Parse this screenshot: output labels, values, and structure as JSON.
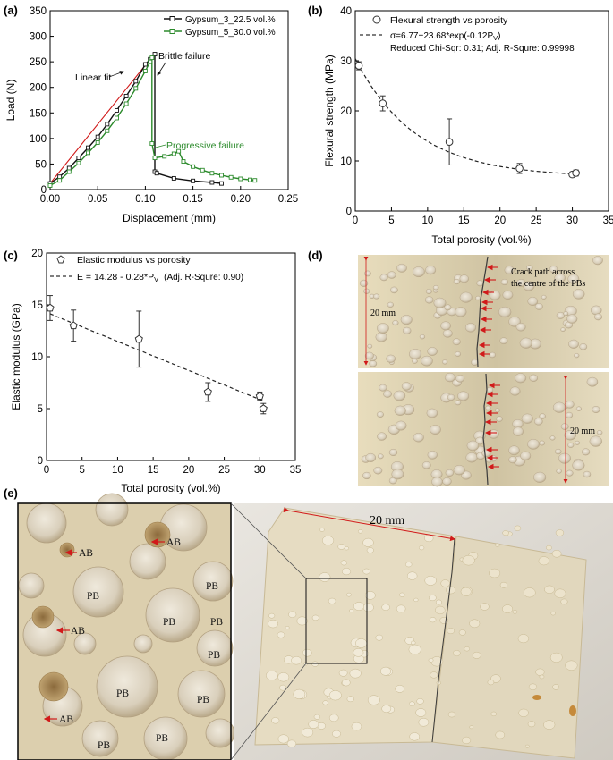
{
  "panels": {
    "a": {
      "label": "(a)",
      "chart": {
        "type": "line",
        "xlabel": "Displacement (mm)",
        "ylabel": "Load (N)",
        "xlim": [
          0.0,
          0.25
        ],
        "ylim": [
          0,
          350
        ],
        "xticks": [
          "0.00",
          "0.05",
          "0.10",
          "0.15",
          "0.20",
          "0.25"
        ],
        "yticks": [
          "0",
          "50",
          "100",
          "150",
          "200",
          "250",
          "300",
          "350"
        ],
        "series": [
          {
            "name": "Gypsum_3_22.5 vol.%",
            "color": "#111111",
            "x": [
              0.0,
              0.01,
              0.02,
              0.03,
              0.04,
              0.05,
              0.06,
              0.07,
              0.08,
              0.09,
              0.1,
              0.105,
              0.11,
              0.11,
              0.112,
              0.13,
              0.15,
              0.17,
              0.18
            ],
            "y": [
              12,
              25,
              42,
              62,
              82,
              103,
              128,
              155,
              183,
              212,
              245,
              255,
              265,
              35,
              32,
              22,
              17,
              14,
              12
            ]
          },
          {
            "name": "Gypsum_5_30.0 vol.%",
            "color": "#2b8a2b",
            "x": [
              0.0,
              0.01,
              0.02,
              0.03,
              0.04,
              0.05,
              0.06,
              0.07,
              0.08,
              0.09,
              0.1,
              0.105,
              0.107,
              0.107,
              0.11,
              0.12,
              0.13,
              0.135,
              0.14,
              0.15,
              0.16,
              0.17,
              0.18,
              0.19,
              0.2,
              0.21,
              0.215
            ],
            "y": [
              8,
              18,
              35,
              52,
              72,
              92,
              115,
              140,
              168,
              198,
              232,
              250,
              258,
              90,
              62,
              65,
              70,
              75,
              55,
              45,
              38,
              32,
              28,
              24,
              21,
              19,
              18
            ]
          }
        ],
        "annotations": {
          "linear_fit": "Linear fit",
          "brittle_failure": "Brittle failure",
          "progressive_failure": "Progressive failure"
        },
        "grid": false,
        "legend": "top-right"
      }
    },
    "b": {
      "label": "(b)",
      "chart": {
        "type": "scatter",
        "xlabel": "Total porosity (vol.%)",
        "ylabel": "Flexural strength (MPa)",
        "xlim": [
          0,
          35
        ],
        "ylim": [
          0,
          40
        ],
        "xticks": [
          "0",
          "5",
          "10",
          "15",
          "20",
          "25",
          "30",
          "35"
        ],
        "yticks": [
          "0",
          "10",
          "20",
          "30",
          "40"
        ],
        "series": [
          {
            "name": "Flexural strength vs porosity",
            "x": [
              0.5,
              3.8,
              13.0,
              22.7,
              30.0,
              30.5
            ],
            "y": [
              29.0,
              21.5,
              13.8,
              8.5,
              7.3,
              7.6
            ],
            "err": [
              0.8,
              1.5,
              4.6,
              1.0,
              0.5,
              0.6
            ]
          }
        ],
        "fit": {
          "a": 6.77,
          "b": 23.68,
          "c": 0.12,
          "equation_main": "σ=6.77+23.68*exp(-0.12P",
          "equation_sub": "V",
          "equation_tail": ")",
          "stats": "Reduced Chi-Sqr: 0.31; Adj. R-Squre: 0.99998"
        },
        "grid": false,
        "legend": "top-right"
      }
    },
    "c": {
      "label": "(c)",
      "chart": {
        "type": "scatter",
        "xlabel": "Total porosity (vol.%)",
        "ylabel": "Elastic modulus (GPa)",
        "xlim": [
          0,
          35
        ],
        "ylim": [
          0,
          20
        ],
        "xticks": [
          "0",
          "5",
          "10",
          "15",
          "20",
          "25",
          "30",
          "35"
        ],
        "yticks": [
          "0",
          "5",
          "10",
          "15",
          "20"
        ],
        "series": [
          {
            "name": "Elastic modulus vs porosity",
            "x": [
              0.5,
              3.8,
              13.0,
              22.7,
              30.0,
              30.5
            ],
            "y": [
              14.7,
              13.0,
              11.7,
              6.6,
              6.2,
              5.0
            ],
            "err": [
              1.2,
              1.5,
              2.7,
              0.9,
              0.4,
              0.5
            ]
          }
        ],
        "fit": {
          "intercept": 14.28,
          "slope": -0.28,
          "equation_main": "E = 14.28 - 0.28*P",
          "equation_sub": "V",
          "stats": "(Adj. R-Squre: 0.90)"
        },
        "grid": false,
        "legend": "top-right"
      }
    },
    "d": {
      "label": "(d)",
      "dimension": "20 mm",
      "crack_caption_1": "Crack path across",
      "crack_caption_2": "the centre of the PBs"
    },
    "e": {
      "label": "(e)",
      "scale_label": "20 mm",
      "markers": [
        {
          "text": "AB",
          "kind": "arrow"
        },
        {
          "text": "AB",
          "kind": "arrow"
        },
        {
          "text": "AB",
          "kind": "arrow"
        },
        {
          "text": "PB",
          "kind": "plain"
        },
        {
          "text": "PB",
          "kind": "plain"
        },
        {
          "text": "PB",
          "kind": "plain"
        },
        {
          "text": "PB",
          "kind": "plain"
        },
        {
          "text": "PB",
          "kind": "plain"
        },
        {
          "text": "PB",
          "kind": "plain"
        },
        {
          "text": "PB",
          "kind": "plain"
        },
        {
          "text": "PB",
          "kind": "plain"
        },
        {
          "text": "PB",
          "kind": "plain"
        },
        {
          "text": "PB",
          "kind": "plain"
        },
        {
          "text": "AB",
          "kind": "arrow"
        }
      ]
    }
  }
}
